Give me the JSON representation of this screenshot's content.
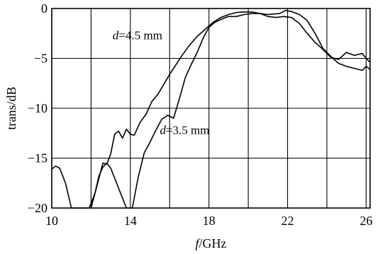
{
  "chart_data": {
    "type": "line",
    "xlabel_italic": "f",
    "xlabel_rest": "/GHz",
    "ylabel": "trans/dB",
    "xlim": [
      10,
      26.2
    ],
    "ylim": [
      -20,
      0
    ],
    "x_ticks": [
      10,
      14,
      18,
      22,
      26
    ],
    "x_tick_labels": [
      "10",
      "14",
      "18",
      "22",
      "26"
    ],
    "x_gridlines": [
      10,
      12,
      14,
      16,
      18,
      20,
      22,
      24,
      26
    ],
    "y_ticks": [
      0,
      -5,
      -10,
      -15,
      -20
    ],
    "y_tick_labels": [
      "0",
      "−5",
      "−10",
      "−15",
      "−20"
    ],
    "grid": true,
    "annotations": [
      {
        "italic": "d",
        "rest": "=4.5 mm",
        "x": 13.1,
        "y": -3.1
      },
      {
        "italic": "d",
        "rest": "=3.5 mm",
        "x": 15.5,
        "y": -12.6
      }
    ],
    "series": [
      {
        "label": "d=4.5 mm",
        "x": [
          12.0,
          12.3,
          12.6,
          12.8,
          13.0,
          13.2,
          13.4,
          13.6,
          13.8,
          14.0,
          14.2,
          14.5,
          14.8,
          15.1,
          15.4,
          15.7,
          16.0,
          16.3,
          16.6,
          17.0,
          17.4,
          17.8,
          18.2,
          18.6,
          19.0,
          19.4,
          19.8,
          20.2,
          20.6,
          21.0,
          21.4,
          21.8,
          22.2,
          22.6,
          23.0,
          23.4,
          23.8,
          24.2,
          24.6,
          25.0,
          25.4,
          25.8,
          26.0,
          26.2
        ],
        "y": [
          -20.0,
          -17.8,
          -15.5,
          -15.6,
          -14.6,
          -12.6,
          -12.3,
          -13.0,
          -12.1,
          -12.6,
          -12.7,
          -11.4,
          -10.6,
          -9.3,
          -8.6,
          -7.6,
          -6.6,
          -5.7,
          -4.8,
          -3.7,
          -2.8,
          -2.1,
          -1.4,
          -0.9,
          -0.6,
          -0.4,
          -0.35,
          -0.35,
          -0.5,
          -0.8,
          -0.9,
          -0.8,
          -0.9,
          -1.5,
          -2.5,
          -3.4,
          -4.1,
          -4.9,
          -5.1,
          -4.4,
          -4.7,
          -4.5,
          -5.0,
          -5.4
        ]
      },
      {
        "label": "d=3.5 mm",
        "x": [
          10.0,
          10.2,
          10.4,
          10.7,
          11.0,
          11.3,
          11.6,
          11.9,
          12.2,
          12.4,
          12.6,
          12.8,
          13.0,
          13.2,
          13.5,
          13.8,
          14.1,
          14.4,
          14.7,
          15.0,
          15.3,
          15.6,
          15.9,
          16.2,
          16.5,
          16.8,
          17.1,
          17.4,
          17.7,
          18.0,
          18.3,
          18.6,
          19.0,
          19.4,
          19.8,
          20.2,
          20.6,
          21.0,
          21.3,
          21.6,
          21.9,
          22.2,
          22.6,
          23.0,
          23.4,
          23.8,
          24.2,
          24.6,
          25.0,
          25.4,
          25.8,
          26.0,
          26.2
        ],
        "y": [
          -16.1,
          -15.8,
          -16.0,
          -17.5,
          -20.0,
          -20.0,
          -20.0,
          -20.0,
          -18.5,
          -16.8,
          -15.9,
          -15.5,
          -16.0,
          -17.0,
          -18.5,
          -20.0,
          -20.0,
          -16.9,
          -14.5,
          -13.4,
          -12.2,
          -11.1,
          -10.7,
          -11.0,
          -9.0,
          -6.9,
          -5.6,
          -4.4,
          -3.0,
          -1.9,
          -1.4,
          -1.1,
          -0.8,
          -0.8,
          -0.6,
          -0.5,
          -0.5,
          -0.6,
          -0.55,
          -0.5,
          -0.2,
          -0.3,
          -0.6,
          -1.2,
          -2.5,
          -4.0,
          -4.8,
          -5.5,
          -5.8,
          -6.0,
          -6.2,
          -5.8,
          -6.1
        ]
      }
    ]
  }
}
